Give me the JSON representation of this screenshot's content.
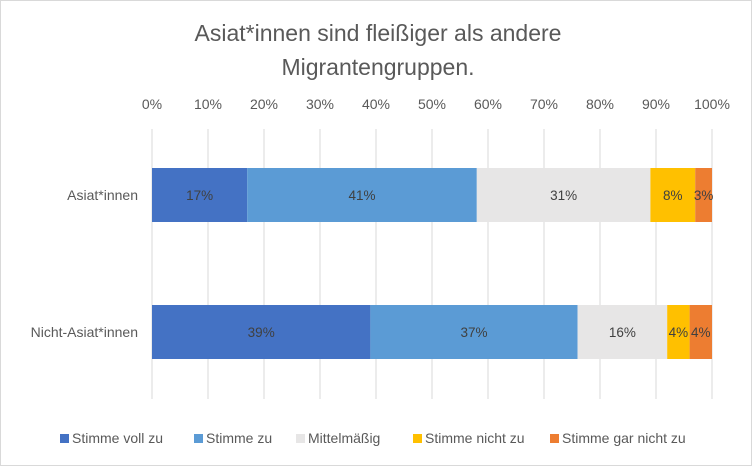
{
  "chart_data": {
    "type": "bar",
    "orientation": "horizontal",
    "stacked": "percent",
    "title": "Asiat*innen sind fleißiger als andere Migrantengruppen.",
    "title_lines": [
      "Asiat*innen sind fleißiger als andere",
      "Migrantengruppen."
    ],
    "categories": [
      "Asiat*innen",
      "Nicht-Asiat*innen"
    ],
    "series": [
      {
        "name": "Stimme voll zu",
        "color": "#4472c4",
        "values": [
          17,
          39
        ],
        "labels": [
          "17%",
          "39%"
        ]
      },
      {
        "name": "Stimme zu",
        "color": "#5b9bd5",
        "values": [
          41,
          37
        ],
        "labels": [
          "41%",
          "37%"
        ]
      },
      {
        "name": "Mittelmäßig",
        "color": "#e7e6e6",
        "values": [
          31,
          16
        ],
        "labels": [
          "31%",
          "16%"
        ]
      },
      {
        "name": "Stimme nicht zu",
        "color": "#ffc000",
        "values": [
          8,
          4
        ],
        "labels": [
          "8%",
          "4%"
        ]
      },
      {
        "name": "Stimme gar nicht zu",
        "color": "#ed7d31",
        "values": [
          3,
          4
        ],
        "labels": [
          "3%",
          "4%"
        ]
      }
    ],
    "xlim": [
      0,
      100
    ],
    "xticks": [
      "0%",
      "10%",
      "20%",
      "30%",
      "40%",
      "50%",
      "60%",
      "70%",
      "80%",
      "90%",
      "100%"
    ],
    "xaxis_position": "top",
    "grid": true,
    "legend": "bottom"
  }
}
